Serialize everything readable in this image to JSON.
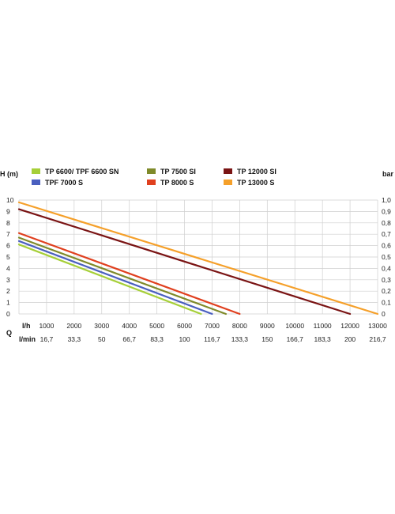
{
  "chart_data": {
    "type": "line",
    "ylabel_left": "H (m)",
    "ylabel_right": "bar",
    "xlabel_symbol": "Q",
    "xlabel_row1": "l/h",
    "xlabel_row2": "l/min",
    "xlim": [
      0,
      13000
    ],
    "ylim": [
      0,
      10
    ],
    "ylim_right": [
      0,
      1
    ],
    "x_ticks": [
      "1000",
      "2000",
      "3000",
      "4000",
      "5000",
      "6000",
      "7000",
      "8000",
      "9000",
      "10000",
      "11000",
      "12000",
      "13000"
    ],
    "x_ticks_lmin": [
      "16,7",
      "33,3",
      "50",
      "66,7",
      "83,3",
      "100",
      "116,7",
      "133,3",
      "150",
      "166,7",
      "183,3",
      "200",
      "216,7"
    ],
    "y_ticks_left": [
      "0",
      "1",
      "2",
      "3",
      "4",
      "5",
      "6",
      "7",
      "8",
      "9",
      "10"
    ],
    "y_ticks_right": [
      "0",
      "0,1",
      "0,2",
      "0,3",
      "0,4",
      "0,5",
      "0,6",
      "0,7",
      "0,8",
      "0,9",
      "1,0"
    ],
    "grid": true,
    "legend_position": "top",
    "series": [
      {
        "name": "TP 6600/ TPF 6600 SN",
        "color": "#a6cf38",
        "x": [
          0,
          6600
        ],
        "y": [
          6.1,
          0
        ]
      },
      {
        "name": "TPF 7000 S",
        "color": "#4a5fbf",
        "x": [
          0,
          7000
        ],
        "y": [
          6.4,
          0
        ]
      },
      {
        "name": "TP 7500 SI",
        "color": "#7f8a2a",
        "x": [
          0,
          7500
        ],
        "y": [
          6.7,
          0
        ]
      },
      {
        "name": "TP 8000 S",
        "color": "#e0401f",
        "x": [
          0,
          8000
        ],
        "y": [
          7.1,
          0
        ]
      },
      {
        "name": "TP 12000 SI",
        "color": "#7a1414",
        "x": [
          0,
          12000
        ],
        "y": [
          9.2,
          0
        ]
      },
      {
        "name": "TP 13000 S",
        "color": "#f5a02a",
        "x": [
          0,
          13000
        ],
        "y": [
          9.8,
          0
        ]
      }
    ]
  }
}
